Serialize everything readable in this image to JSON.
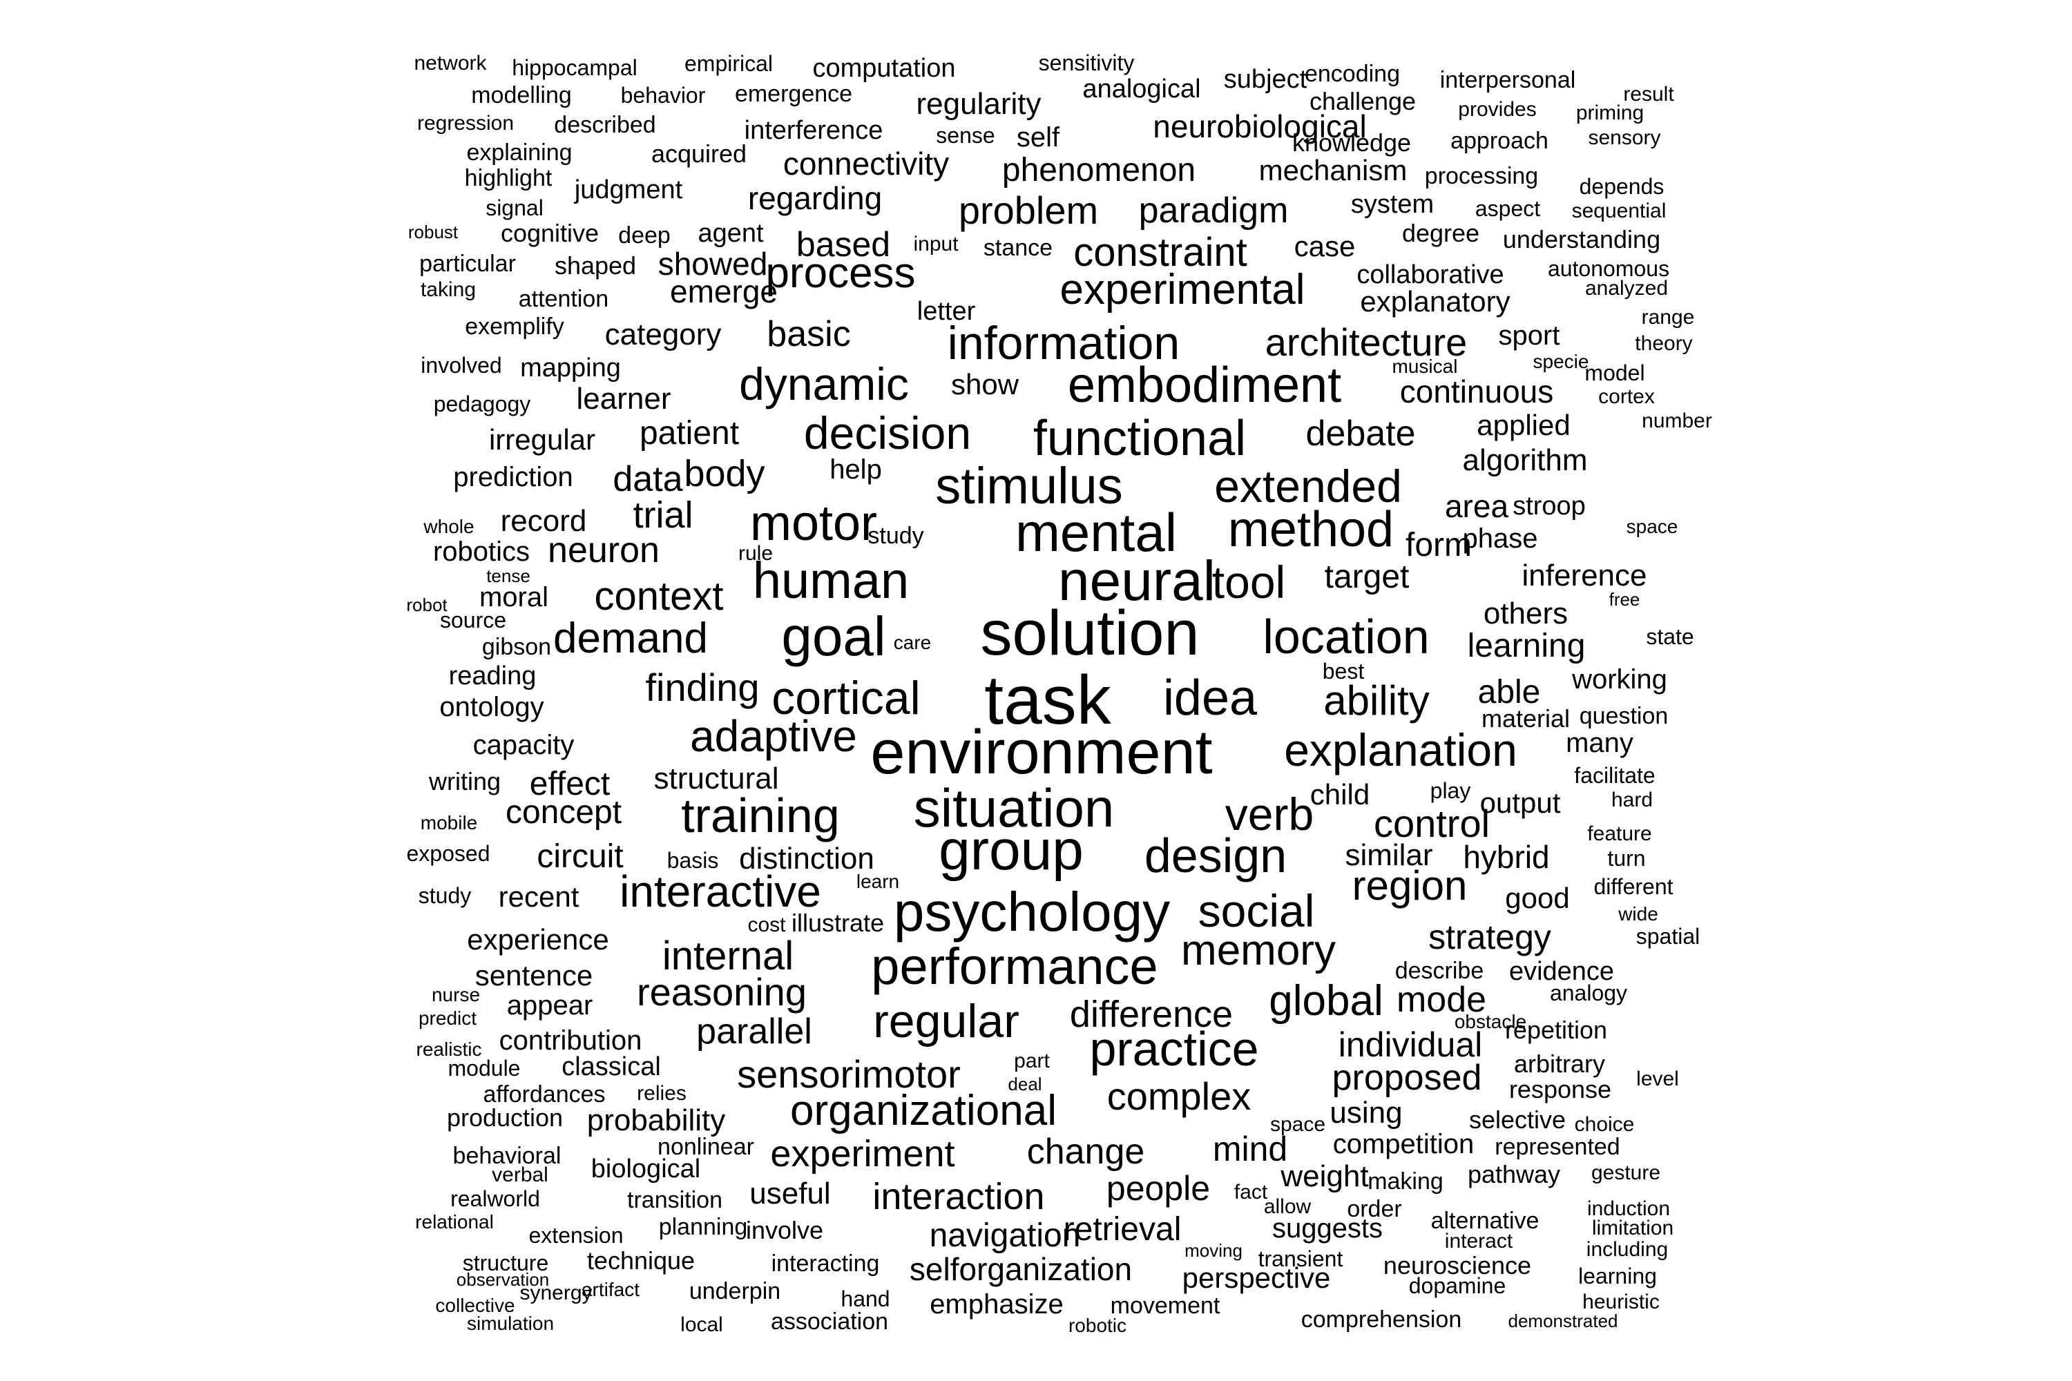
{
  "palette": {
    "background": "#ffffff",
    "text": "#000000"
  },
  "words": [
    "network",
    "hippocampal",
    "empirical",
    "computation",
    "sensitivity",
    "analogical",
    "subject",
    "encoding",
    "interpersonal",
    "result",
    "modelling",
    "behavior",
    "emergence",
    "regularity",
    "challenge",
    "provides",
    "priming",
    "regression",
    "described",
    "interference",
    "sense",
    "self",
    "neurobiological",
    "knowledge",
    "approach",
    "sensory",
    "explaining",
    "acquired",
    "connectivity",
    "phenomenon",
    "mechanism",
    "processing",
    "depends",
    "highlight",
    "judgment",
    "regarding",
    "signal",
    "system",
    "aspect",
    "sequential",
    "problem",
    "paradigm",
    "robust",
    "cognitive",
    "deep",
    "agent",
    "input",
    "stance",
    "case",
    "degree",
    "understanding",
    "particular",
    "shaped",
    "showed",
    "based",
    "constraint",
    "collaborative",
    "autonomous",
    "taking",
    "attention",
    "emerge",
    "process",
    "experimental",
    "explanatory",
    "analyzed",
    "letter",
    "exemplify",
    "category",
    "basic",
    "range",
    "information",
    "architecture",
    "sport",
    "theory",
    "involved",
    "mapping",
    "musical",
    "specie",
    "model",
    "show",
    "embodiment",
    "dynamic",
    "continuous",
    "cortex",
    "pedagogy",
    "learner",
    "number",
    "irregular",
    "patient",
    "decision",
    "functional",
    "debate",
    "applied",
    "prediction",
    "data",
    "body",
    "help",
    "algorithm",
    "stimulus",
    "extended",
    "trial",
    "area",
    "stroop",
    "whole",
    "record",
    "motor",
    "mental",
    "method",
    "space",
    "robotics",
    "neuron",
    "study",
    "rule",
    "form",
    "phase",
    "tense",
    "human",
    "neural",
    "tool",
    "target",
    "inference",
    "robot",
    "moral",
    "context",
    "free",
    "source",
    "others",
    "gibson",
    "demand",
    "goal",
    "care",
    "solution",
    "location",
    "learning",
    "state",
    "best",
    "reading",
    "task",
    "finding",
    "working",
    "ontology",
    "cortical",
    "idea",
    "ability",
    "able",
    "material",
    "question",
    "adaptive",
    "capacity",
    "many",
    "environment",
    "explanation",
    "writing",
    "effect",
    "structural",
    "facilitate",
    "child",
    "play",
    "output",
    "situation",
    "concept",
    "training",
    "verb",
    "control",
    "mobile",
    "hard",
    "feature",
    "exposed",
    "circuit",
    "basis",
    "distinction",
    "group",
    "design",
    "similar",
    "hybrid",
    "turn",
    "learn",
    "region",
    "different",
    "study",
    "recent",
    "interactive",
    "good",
    "cost",
    "illustrate",
    "psychology",
    "social",
    "wide",
    "experience",
    "strategy",
    "spatial",
    "internal",
    "memory",
    "sentence",
    "describe",
    "evidence",
    "performance",
    "analogy",
    "reasoning",
    "nurse",
    "mode",
    "appear",
    "global",
    "predict",
    "regular",
    "difference",
    "obstacle",
    "contribution",
    "parallel",
    "repetition",
    "individual",
    "realistic",
    "practice",
    "arbitrary",
    "part",
    "module",
    "classical",
    "sensorimotor",
    "proposed",
    "level",
    "deal",
    "response",
    "affordances",
    "relies",
    "complex",
    "organizational",
    "production",
    "probability",
    "space",
    "using",
    "selective",
    "choice",
    "mind",
    "change",
    "nonlinear",
    "competition",
    "represented",
    "experiment",
    "behavioral",
    "biological",
    "people",
    "verbal",
    "weight",
    "pathway",
    "making",
    "gesture",
    "useful",
    "fact",
    "realworld",
    "interaction",
    "transition",
    "allow",
    "order",
    "induction",
    "relational",
    "alternative",
    "planning",
    "retrieval",
    "extension",
    "involve",
    "limitation",
    "suggests",
    "navigation",
    "interact",
    "including",
    "moving",
    "transient",
    "technique",
    "structure",
    "selforganization",
    "neuroscience",
    "interacting",
    "observation",
    "perspective",
    "learning",
    "dopamine",
    "synergy",
    "artifact",
    "underpin",
    "heuristic",
    "hand",
    "emphasize",
    "collective",
    "movement",
    "association",
    "simulation",
    "comprehension",
    "local",
    "demonstrated",
    "robotic"
  ]
}
